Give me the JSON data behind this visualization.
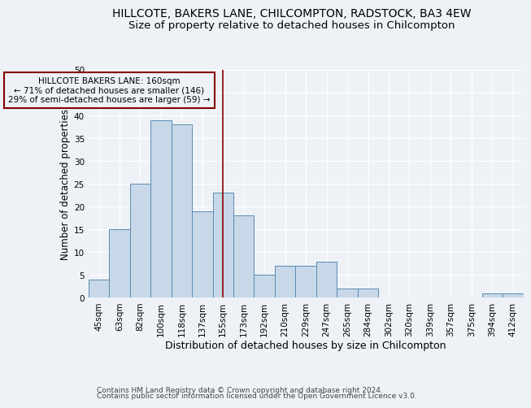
{
  "title1": "HILLCOTE, BAKERS LANE, CHILCOMPTON, RADSTOCK, BA3 4EW",
  "title2": "Size of property relative to detached houses in Chilcompton",
  "xlabel": "Distribution of detached houses by size in Chilcompton",
  "ylabel": "Number of detached properties",
  "footnote1": "Contains HM Land Registry data © Crown copyright and database right 2024.",
  "footnote2": "Contains public sector information licensed under the Open Government Licence v3.0.",
  "categories": [
    "45sqm",
    "63sqm",
    "82sqm",
    "100sqm",
    "118sqm",
    "137sqm",
    "155sqm",
    "173sqm",
    "192sqm",
    "210sqm",
    "229sqm",
    "247sqm",
    "265sqm",
    "284sqm",
    "302sqm",
    "320sqm",
    "339sqm",
    "357sqm",
    "375sqm",
    "394sqm",
    "412sqm"
  ],
  "values": [
    4,
    15,
    25,
    39,
    38,
    19,
    23,
    18,
    5,
    7,
    7,
    8,
    2,
    2,
    0,
    0,
    0,
    0,
    0,
    1,
    1
  ],
  "bar_color": "#c8d8e8",
  "bar_edge_color": "#5a8ab0",
  "vline_x": 6.0,
  "vline_color": "#880000",
  "annotation_text": "HILLCOTE BAKERS LANE: 160sqm\n← 71% of detached houses are smaller (146)\n29% of semi-detached houses are larger (59) →",
  "annotation_box_color": "#880000",
  "ylim": [
    0,
    50
  ],
  "yticks": [
    0,
    5,
    10,
    15,
    20,
    25,
    30,
    35,
    40,
    45,
    50
  ],
  "bg_color": "#eef2f7",
  "grid_color": "#ffffff",
  "title1_fontsize": 10,
  "title2_fontsize": 9.5,
  "xlabel_fontsize": 9,
  "ylabel_fontsize": 8.5,
  "tick_fontsize": 7.5,
  "annotation_fontsize": 7.5,
  "footnote_fontsize": 6.5
}
